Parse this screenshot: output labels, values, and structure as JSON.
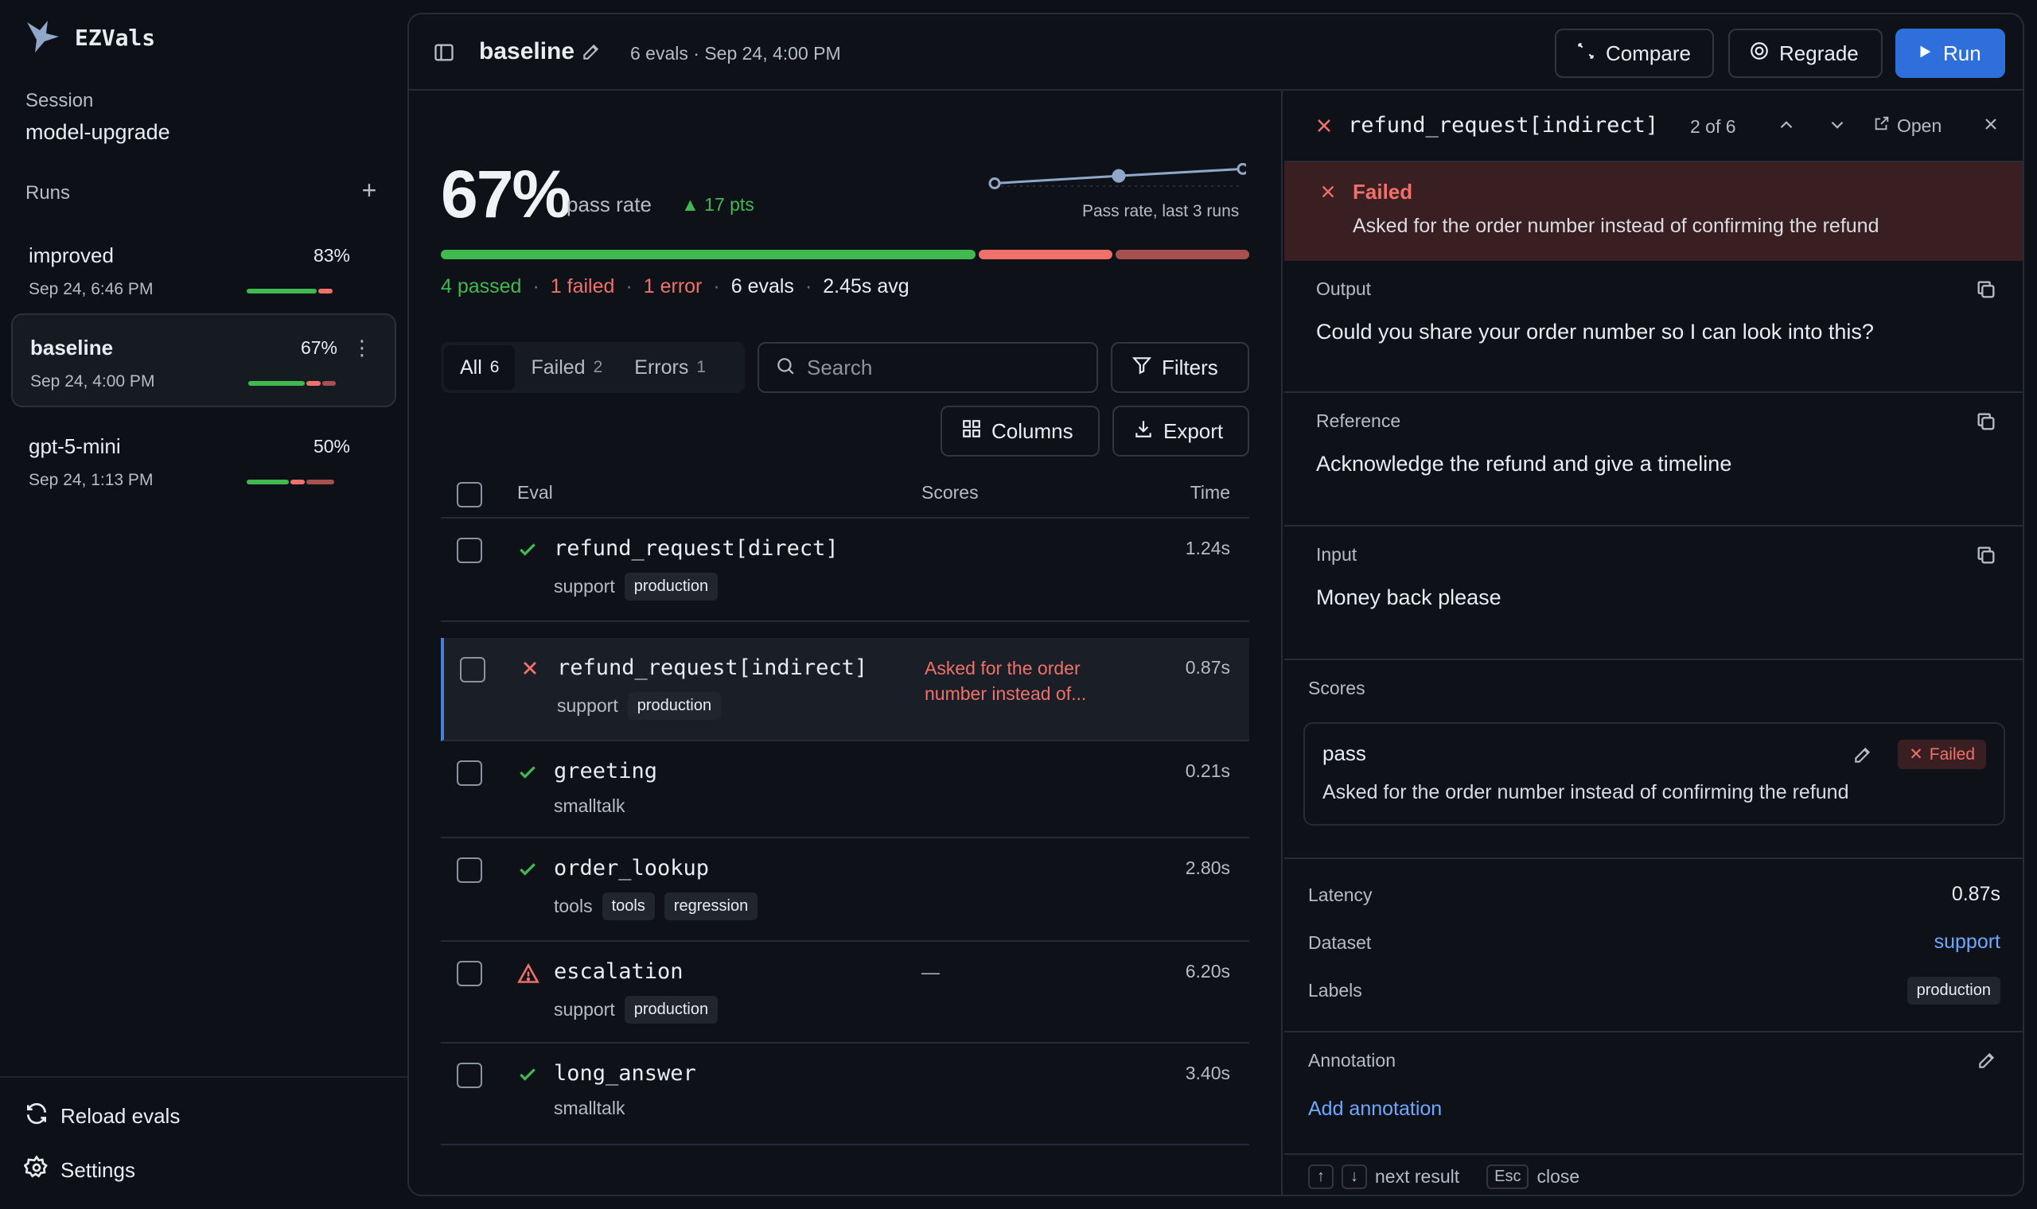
{
  "app": {
    "name": "EZVals"
  },
  "session": {
    "label": "Session",
    "value": "model-upgrade"
  },
  "runs": {
    "label": "Runs",
    "items": [
      {
        "name": "improved",
        "pct": "83%",
        "date": "Sep 24, 6:46 PM",
        "bar": {
          "passed": 0.83,
          "failed": 0.17,
          "error": 0
        }
      },
      {
        "name": "baseline",
        "pct": "67%",
        "date": "Sep 24, 4:00 PM",
        "bar": {
          "passed": 0.67,
          "failed": 0.17,
          "error": 0.16
        }
      },
      {
        "name": "gpt-5-mini",
        "pct": "50%",
        "date": "Sep 24, 1:13 PM",
        "bar": {
          "passed": 0.5,
          "failed": 0.17,
          "error": 0.33
        }
      }
    ]
  },
  "sidebar_actions": {
    "reload": "Reload evals",
    "settings": "Settings"
  },
  "header": {
    "title": "baseline",
    "meta": "6 evals · Sep 24, 4:00 PM",
    "compare": "Compare",
    "regrade": "Regrade",
    "run": "Run"
  },
  "stats": {
    "pass_pct": "67%",
    "pass_label": "pass rate",
    "delta": "17 pts",
    "trend_label": "Pass rate, last 3 runs",
    "trend_values": [
      50,
      67,
      83
    ],
    "progress": {
      "passed": 4,
      "failed": 1,
      "error": 1
    },
    "summary": {
      "passed": "4 passed",
      "failed": "1 failed",
      "error": "1 error",
      "evals": "6 evals",
      "avg": "2.45s avg"
    }
  },
  "filters": {
    "tabs": [
      {
        "label": "All",
        "count": "6"
      },
      {
        "label": "Failed",
        "count": "2"
      },
      {
        "label": "Errors",
        "count": "1"
      }
    ],
    "search_placeholder": "Search",
    "filters_label": "Filters",
    "columns_label": "Columns",
    "export_label": "Export"
  },
  "table": {
    "headers": {
      "eval": "Eval",
      "scores": "Scores",
      "time": "Time"
    },
    "rows": [
      {
        "status": "pass",
        "name": "refund_request[direct]",
        "dataset": "support",
        "labels": [
          "production"
        ],
        "score": "",
        "time": "1.24s"
      },
      {
        "status": "fail",
        "name": "refund_request[indirect]",
        "dataset": "support",
        "labels": [
          "production"
        ],
        "score": "Asked for the order number instead of...",
        "time": "0.87s"
      },
      {
        "status": "pass",
        "name": "greeting",
        "dataset": "smalltalk",
        "labels": [],
        "score": "",
        "time": "0.21s"
      },
      {
        "status": "pass",
        "name": "order_lookup",
        "dataset": "tools",
        "labels": [
          "tools",
          "regression"
        ],
        "score": "",
        "time": "2.80s"
      },
      {
        "status": "error",
        "name": "escalation",
        "dataset": "support",
        "labels": [
          "production"
        ],
        "score": "—",
        "time": "6.20s"
      },
      {
        "status": "pass",
        "name": "long_answer",
        "dataset": "smalltalk",
        "labels": [],
        "score": "",
        "time": "3.40s"
      }
    ]
  },
  "detail": {
    "title": "refund_request[indirect]",
    "position": "2 of 6",
    "open_label": "Open",
    "banner": {
      "title": "Failed",
      "message": "Asked for the order number instead of confirming the refund"
    },
    "output": {
      "label": "Output",
      "value": "Could you share your order number so I can look into this?"
    },
    "reference": {
      "label": "Reference",
      "value": "Acknowledge the refund and give a timeline"
    },
    "input": {
      "label": "Input",
      "value": "Money back please"
    },
    "scores": {
      "label": "Scores",
      "items": [
        {
          "name": "pass",
          "badge": "Failed",
          "reason": "Asked for the order number instead of confirming the refund"
        }
      ]
    },
    "meta": {
      "latency_label": "Latency",
      "latency": "0.87s",
      "dataset_label": "Dataset",
      "dataset": "support",
      "labels_label": "Labels",
      "labels": "production"
    },
    "annotation": {
      "label": "Annotation",
      "add": "Add annotation"
    },
    "footer": {
      "next": "next result",
      "esc_key": "Esc",
      "close": "close"
    }
  },
  "colors": {
    "pass": "#3fb950",
    "fail": "#f0706a",
    "error_bar": "#a8504f",
    "accent": "#2f6fdb",
    "link": "#6ea8fe"
  }
}
